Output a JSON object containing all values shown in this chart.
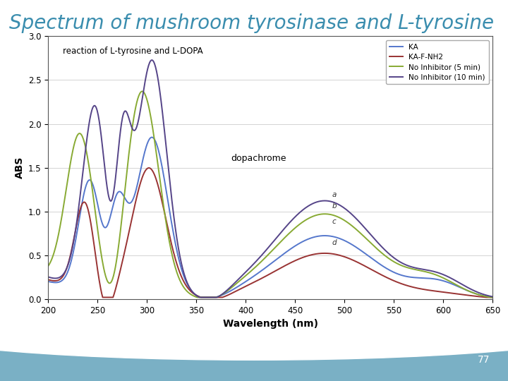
{
  "title": "Spectrum of mushroom tyrosinase and L-tyrosine",
  "title_color": "#3A8DAE",
  "title_fontsize": 20,
  "xlabel": "Wavelength (nm)",
  "ylabel": "ABS",
  "xlim": [
    200,
    650
  ],
  "ylim": [
    0,
    3
  ],
  "yticks": [
    0,
    0.5,
    1,
    1.5,
    2,
    2.5,
    3
  ],
  "xticks": [
    200,
    250,
    300,
    350,
    400,
    450,
    500,
    550,
    600,
    650
  ],
  "annotation_text1": "reaction of L-tyrosine and L-DOPA",
  "annotation_text2": "dopachrome",
  "annotation_a": "a",
  "annotation_b": "b",
  "annotation_c": "c",
  "annotation_d": "d",
  "legend_labels": [
    "KA",
    "KA-F-NH2",
    "No Inhibitor (5 min)",
    "No Inhibitor (10 min)"
  ],
  "line_colors": [
    "#5577CC",
    "#993333",
    "#88AA33",
    "#554488"
  ],
  "bg_slide": "#AACCDD",
  "bg_white": "#FFFFFF",
  "page_number": "77"
}
